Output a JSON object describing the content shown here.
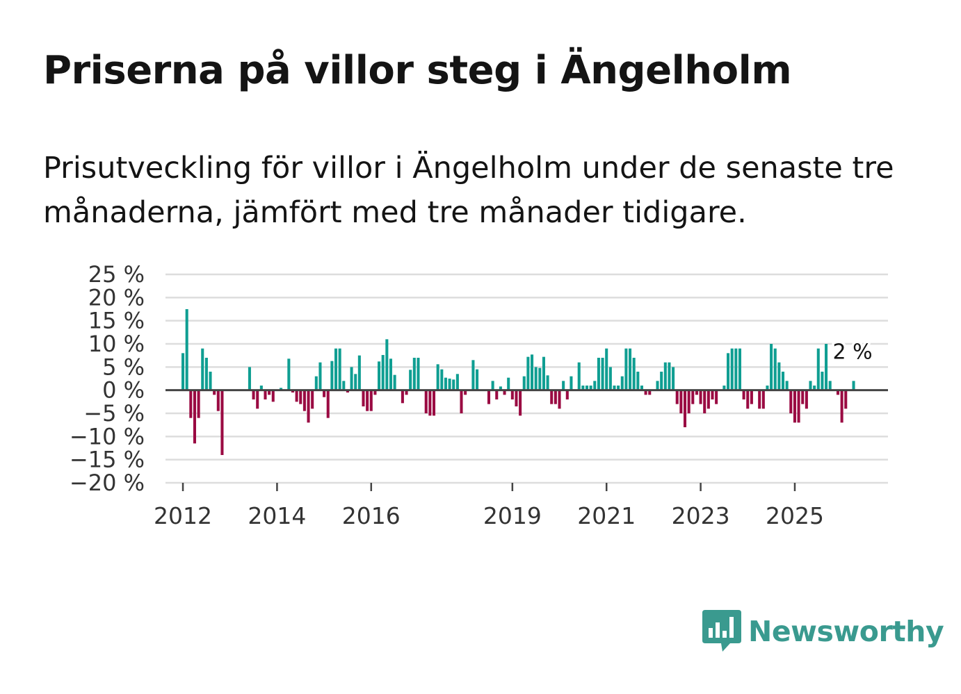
{
  "title": "Priserna på villor steg i Ängelholm",
  "subtitle": "Prisutveckling för villor i Ängelholm under de senaste tre månaderna, jämfört med tre månader tidigare.",
  "brand": {
    "name": "Newsworthy",
    "color": "#3a9a8f",
    "icon": "newsworthy-logo-icon"
  },
  "colors": {
    "positive": "#0f9e92",
    "negative": "#9a0a42",
    "grid": "#dddddd",
    "zero": "#444444"
  },
  "chart_data": {
    "type": "bar",
    "title": "Priserna på villor steg i Ängelholm",
    "xlabel": "",
    "ylabel": "",
    "ylim": [
      -20,
      25
    ],
    "y_ticks": [
      25,
      20,
      15,
      10,
      5,
      0,
      -5,
      -10,
      -15,
      -20
    ],
    "y_tick_labels": [
      "25 %",
      "20 %",
      "15 %",
      "10 %",
      "5 %",
      "0 %",
      "−5 %",
      "−10 %",
      "−15 %",
      "−20 %"
    ],
    "x_start": 2012.0,
    "x_step": 0.08333,
    "x_ticks": [
      2012,
      2014,
      2016,
      2019,
      2021,
      2023,
      2025
    ],
    "x_tick_labels": [
      "2012",
      "2014",
      "2016",
      "2019",
      "2021",
      "2023",
      "2025"
    ],
    "annotation": {
      "label": "2 %",
      "value": 2
    },
    "values": [
      8,
      17.5,
      -6,
      -11.5,
      -6,
      9,
      7,
      4,
      -1,
      -4.5,
      -14,
      0,
      0,
      0,
      0,
      0,
      0,
      5,
      -2,
      -4,
      1,
      -2,
      -1,
      -2.5,
      0,
      0.5,
      0,
      6.8,
      -0.5,
      -2.5,
      -3,
      -4.5,
      -7,
      -4,
      3,
      6,
      -1.5,
      -6,
      6.3,
      9,
      9,
      2,
      -0.5,
      5,
      3.5,
      7.5,
      -3.5,
      -4.5,
      -4.5,
      -1,
      6.2,
      7.6,
      11,
      6.8,
      3.3,
      0,
      -2.8,
      -1,
      4.4,
      7,
      7,
      0,
      -5,
      -5.5,
      -5.5,
      5.6,
      4.5,
      2.7,
      2.5,
      2.3,
      3.5,
      -5,
      -1,
      0,
      6.5,
      4.5,
      0,
      0,
      -3,
      2,
      -2,
      0.8,
      -1,
      2.7,
      -2,
      -3.5,
      -5.5,
      3,
      7.2,
      7.7,
      5,
      4.8,
      7.2,
      3.2,
      -3,
      -3,
      -4,
      2,
      -2,
      3,
      0,
      6,
      1,
      1,
      1,
      2,
      7,
      7,
      9,
      5,
      1,
      1,
      3,
      9,
      9,
      7,
      4,
      1,
      -1,
      -1,
      0,
      2,
      4,
      6,
      6,
      5,
      -3,
      -5,
      -8,
      -5,
      -3,
      -1,
      -3,
      -5,
      -4,
      -2,
      -3,
      0,
      1,
      8,
      9,
      9,
      9,
      -2,
      -4,
      -3,
      0,
      -4,
      -4,
      1,
      10,
      9,
      6,
      4,
      2,
      -5,
      -7,
      -7,
      -3,
      -4,
      2,
      1,
      9,
      4,
      10,
      2,
      0,
      -1,
      -7,
      -4,
      0,
      2
    ]
  }
}
